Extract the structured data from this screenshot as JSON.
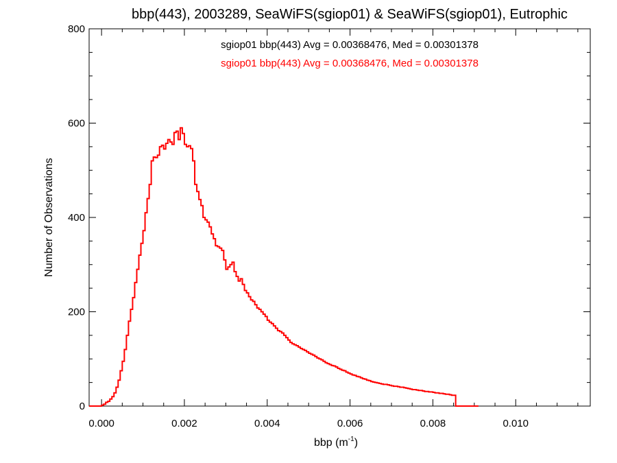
{
  "chart_data": {
    "type": "histogram",
    "title": "bbp(443), 2003289, SeaWiFS(sgiop01) & SeaWiFS(sgiop01), Eutrophic",
    "xlabel_main": "bbp (m",
    "xlabel_sup": "-1",
    "xlabel_end": ")",
    "ylabel": "Number of Observations",
    "xlim": [
      -0.0003,
      0.0118
    ],
    "ylim": [
      0,
      800
    ],
    "x_ticks": [
      0.0,
      0.002,
      0.004,
      0.006,
      0.008,
      0.01
    ],
    "x_tick_labels": [
      "0.000",
      "0.002",
      "0.004",
      "0.006",
      "0.008",
      "0.010"
    ],
    "y_ticks": [
      0,
      200,
      400,
      600,
      800
    ],
    "y_tick_labels": [
      "0",
      "200",
      "400",
      "600",
      "800"
    ],
    "annotations": [
      {
        "text": "sgiop01 bbp(443) Avg = 0.00368476, Med = 0.00301378",
        "color": "#000000"
      },
      {
        "text": "sgiop01 bbp(443) Avg = 0.00368476, Med = 0.00301378",
        "color": "#ff0000"
      }
    ],
    "series": [
      {
        "name": "sgiop01 bbp(443)",
        "color": "#ff0000",
        "bin_start": -0.0003,
        "bin_width": 5e-05,
        "counts": [
          0,
          0,
          0,
          0,
          0,
          0,
          2,
          4,
          8,
          10,
          15,
          20,
          28,
          40,
          55,
          75,
          95,
          120,
          150,
          180,
          205,
          230,
          262,
          290,
          320,
          345,
          372,
          410,
          440,
          470,
          520,
          528,
          527,
          532,
          550,
          553,
          545,
          557,
          565,
          560,
          555,
          580,
          583,
          565,
          590,
          578,
          555,
          550,
          552,
          546,
          520,
          470,
          455,
          438,
          425,
          400,
          395,
          390,
          380,
          365,
          355,
          340,
          338,
          335,
          330,
          310,
          290,
          295,
          300,
          305,
          285,
          275,
          265,
          270,
          258,
          245,
          240,
          232,
          225,
          222,
          215,
          208,
          205,
          200,
          195,
          190,
          182,
          178,
          175,
          170,
          165,
          160,
          158,
          155,
          150,
          145,
          140,
          135,
          132,
          130,
          128,
          125,
          122,
          120,
          118,
          115,
          112,
          110,
          108,
          105,
          102,
          100,
          98,
          95,
          92,
          90,
          88,
          86,
          85,
          83,
          80,
          78,
          76,
          75,
          72,
          70,
          68,
          66,
          65,
          63,
          62,
          60,
          58,
          57,
          55,
          54,
          52,
          51,
          50,
          49,
          48,
          47,
          46,
          46,
          45,
          44,
          43,
          42,
          42,
          41,
          40,
          40,
          39,
          38,
          37,
          36,
          35,
          35,
          34,
          33,
          33,
          32,
          31,
          31,
          30,
          30,
          29,
          28,
          28,
          27,
          27,
          26,
          25,
          25,
          24,
          23,
          23,
          0,
          0,
          0,
          0,
          0,
          0,
          0,
          0,
          0,
          0,
          0
        ]
      }
    ]
  }
}
